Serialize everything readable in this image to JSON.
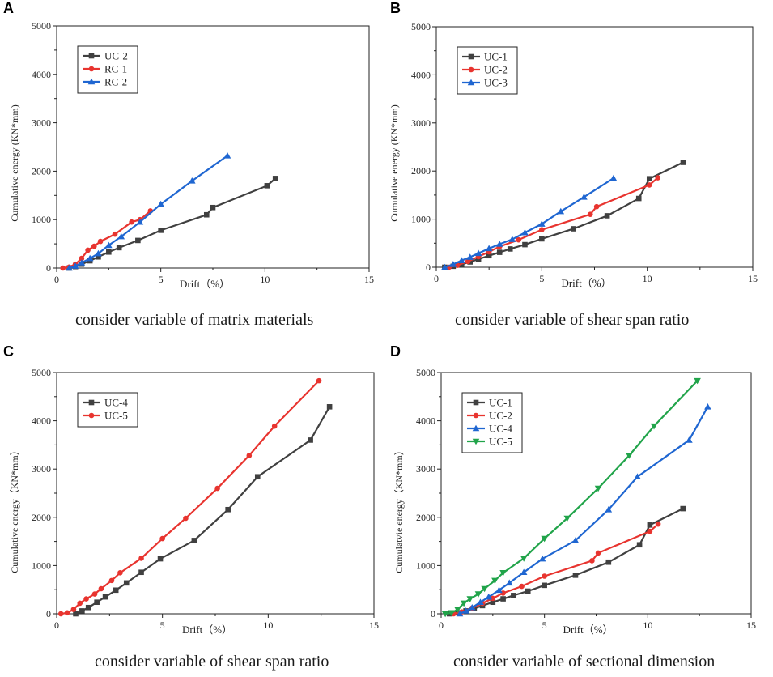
{
  "colors": {
    "gray": "#404040",
    "red": "#e8342f",
    "blue": "#1f66d1",
    "green": "#21a44a"
  },
  "panels": [
    {
      "letter": "A",
      "caption": "consider variable of matrix materials"
    },
    {
      "letter": "B",
      "caption": "consider variable of shear span ratio"
    },
    {
      "letter": "C",
      "caption": "consider variable of shear span ratio"
    },
    {
      "letter": "D",
      "caption": "consider variable of sectional dimension"
    }
  ],
  "chart_data": [
    {
      "type": "line",
      "panel": "A",
      "xlabel": "Drift（%）",
      "ylabel": "Cumulative energy (KN*mm)",
      "xlim": [
        0,
        15
      ],
      "ylim": [
        0,
        5000
      ],
      "xticks": [
        0,
        5,
        10,
        15
      ],
      "yticks": [
        0,
        1000,
        2000,
        3000,
        4000,
        5000
      ],
      "legend": "top-left",
      "series": [
        {
          "name": "UC-2",
          "color": "gray",
          "marker": "square",
          "x": [
            0.6,
            0.9,
            1.2,
            1.6,
            2.0,
            2.5,
            3.0,
            3.9,
            5.0,
            7.2,
            7.5,
            10.1,
            10.5
          ],
          "y": [
            0,
            30,
            80,
            150,
            230,
            330,
            420,
            570,
            780,
            1100,
            1250,
            1700,
            1850
          ]
        },
        {
          "name": "RC-1",
          "color": "red",
          "marker": "circle",
          "x": [
            0.3,
            0.6,
            0.9,
            1.2,
            1.5,
            1.8,
            2.1,
            2.8,
            3.6,
            4.0,
            4.5
          ],
          "y": [
            0,
            20,
            80,
            200,
            370,
            450,
            550,
            700,
            950,
            1000,
            1180
          ]
        },
        {
          "name": "RC-2",
          "color": "blue",
          "marker": "triangle",
          "x": [
            0.6,
            0.9,
            1.2,
            1.6,
            2.0,
            2.5,
            3.1,
            4.0,
            5.0,
            6.5,
            8.2
          ],
          "y": [
            0,
            40,
            110,
            200,
            300,
            470,
            650,
            950,
            1320,
            1800,
            2320
          ]
        }
      ]
    },
    {
      "type": "line",
      "panel": "B",
      "xlabel": "Drift（%）",
      "ylabel": "Cumulative energy (KN*mm)",
      "xlim": [
        0,
        15
      ],
      "ylim": [
        0,
        5000
      ],
      "xticks": [
        0,
        5,
        10,
        15
      ],
      "yticks": [
        0,
        1000,
        2000,
        3000,
        4000,
        5000
      ],
      "legend": "top-left",
      "series": [
        {
          "name": "UC-1",
          "color": "gray",
          "marker": "square",
          "x": [
            0.4,
            0.8,
            1.2,
            1.6,
            2.0,
            2.5,
            3.0,
            3.5,
            4.2,
            5.0,
            6.5,
            8.1,
            9.6,
            10.1,
            11.7
          ],
          "y": [
            0,
            20,
            60,
            110,
            170,
            240,
            310,
            380,
            470,
            590,
            800,
            1070,
            1430,
            1840,
            2180
          ]
        },
        {
          "name": "UC-2",
          "color": "red",
          "marker": "circle",
          "x": [
            0.6,
            1.0,
            1.5,
            2.0,
            2.5,
            3.0,
            3.9,
            5.0,
            7.3,
            7.6,
            10.1,
            10.5
          ],
          "y": [
            0,
            40,
            120,
            220,
            320,
            430,
            570,
            780,
            1100,
            1260,
            1710,
            1860
          ]
        },
        {
          "name": "UC-3",
          "color": "blue",
          "marker": "triangle",
          "x": [
            0.4,
            0.8,
            1.2,
            1.6,
            2.0,
            2.5,
            3.0,
            3.6,
            4.2,
            5.0,
            5.9,
            7.0,
            8.4
          ],
          "y": [
            0,
            60,
            140,
            210,
            290,
            390,
            480,
            580,
            720,
            900,
            1160,
            1460,
            1850
          ]
        }
      ]
    },
    {
      "type": "line",
      "panel": "C",
      "xlabel": "Drift（%）",
      "ylabel": "Cumulative energy（KN*mm）",
      "xlim": [
        0,
        15
      ],
      "ylim": [
        0,
        5000
      ],
      "xticks": [
        0,
        5,
        10,
        15
      ],
      "yticks": [
        0,
        1000,
        2000,
        3000,
        4000,
        5000
      ],
      "legend": "top-left",
      "series": [
        {
          "name": "UC-4",
          "color": "gray",
          "marker": "square",
          "x": [
            0.9,
            1.2,
            1.5,
            1.9,
            2.3,
            2.8,
            3.3,
            4.0,
            4.9,
            6.5,
            8.1,
            9.5,
            12.0,
            12.9
          ],
          "y": [
            0,
            60,
            130,
            240,
            350,
            490,
            640,
            860,
            1140,
            1520,
            2160,
            2840,
            3600,
            4290
          ]
        },
        {
          "name": "UC-5",
          "color": "red",
          "marker": "circle",
          "x": [
            0.2,
            0.5,
            0.8,
            1.1,
            1.4,
            1.8,
            2.1,
            2.6,
            3.0,
            4.0,
            5.0,
            6.1,
            7.6,
            9.1,
            10.3,
            12.4
          ],
          "y": [
            0,
            20,
            90,
            220,
            310,
            410,
            520,
            690,
            850,
            1150,
            1560,
            1980,
            2600,
            3280,
            3890,
            4830
          ]
        }
      ]
    },
    {
      "type": "line",
      "panel": "D",
      "xlabel": "Drift（%）",
      "ylabel": "Cumulatvie energy（KN*mm）",
      "xlim": [
        0,
        15
      ],
      "ylim": [
        0,
        5000
      ],
      "xticks": [
        0,
        5,
        10,
        15
      ],
      "yticks": [
        0,
        1000,
        2000,
        3000,
        4000,
        5000
      ],
      "legend": "top-left",
      "series": [
        {
          "name": "UC-1",
          "color": "gray",
          "marker": "square",
          "x": [
            0.4,
            0.8,
            1.2,
            1.6,
            2.0,
            2.5,
            3.0,
            3.5,
            4.2,
            5.0,
            6.5,
            8.1,
            9.6,
            10.1,
            11.7
          ],
          "y": [
            0,
            20,
            60,
            110,
            170,
            240,
            310,
            380,
            470,
            590,
            800,
            1070,
            1430,
            1840,
            2180
          ]
        },
        {
          "name": "UC-2",
          "color": "red",
          "marker": "circle",
          "x": [
            0.6,
            1.0,
            1.5,
            2.0,
            2.5,
            3.0,
            3.9,
            5.0,
            7.3,
            7.6,
            10.1,
            10.5
          ],
          "y": [
            0,
            40,
            120,
            220,
            320,
            430,
            570,
            780,
            1100,
            1260,
            1710,
            1860
          ]
        },
        {
          "name": "UC-4",
          "color": "blue",
          "marker": "triangle",
          "x": [
            0.9,
            1.2,
            1.5,
            1.9,
            2.3,
            2.8,
            3.3,
            4.0,
            4.9,
            6.5,
            8.1,
            9.5,
            12.0,
            12.9
          ],
          "y": [
            0,
            60,
            130,
            240,
            350,
            490,
            640,
            860,
            1140,
            1520,
            2160,
            2840,
            3600,
            4290
          ]
        },
        {
          "name": "UC-5",
          "color": "green",
          "marker": "triangle-down",
          "x": [
            0.2,
            0.5,
            0.8,
            1.1,
            1.4,
            1.8,
            2.1,
            2.6,
            3.0,
            4.0,
            5.0,
            6.1,
            7.6,
            9.1,
            10.3,
            12.4
          ],
          "y": [
            0,
            20,
            90,
            220,
            310,
            410,
            520,
            690,
            850,
            1150,
            1560,
            1980,
            2600,
            3280,
            3890,
            4830
          ]
        }
      ]
    }
  ]
}
